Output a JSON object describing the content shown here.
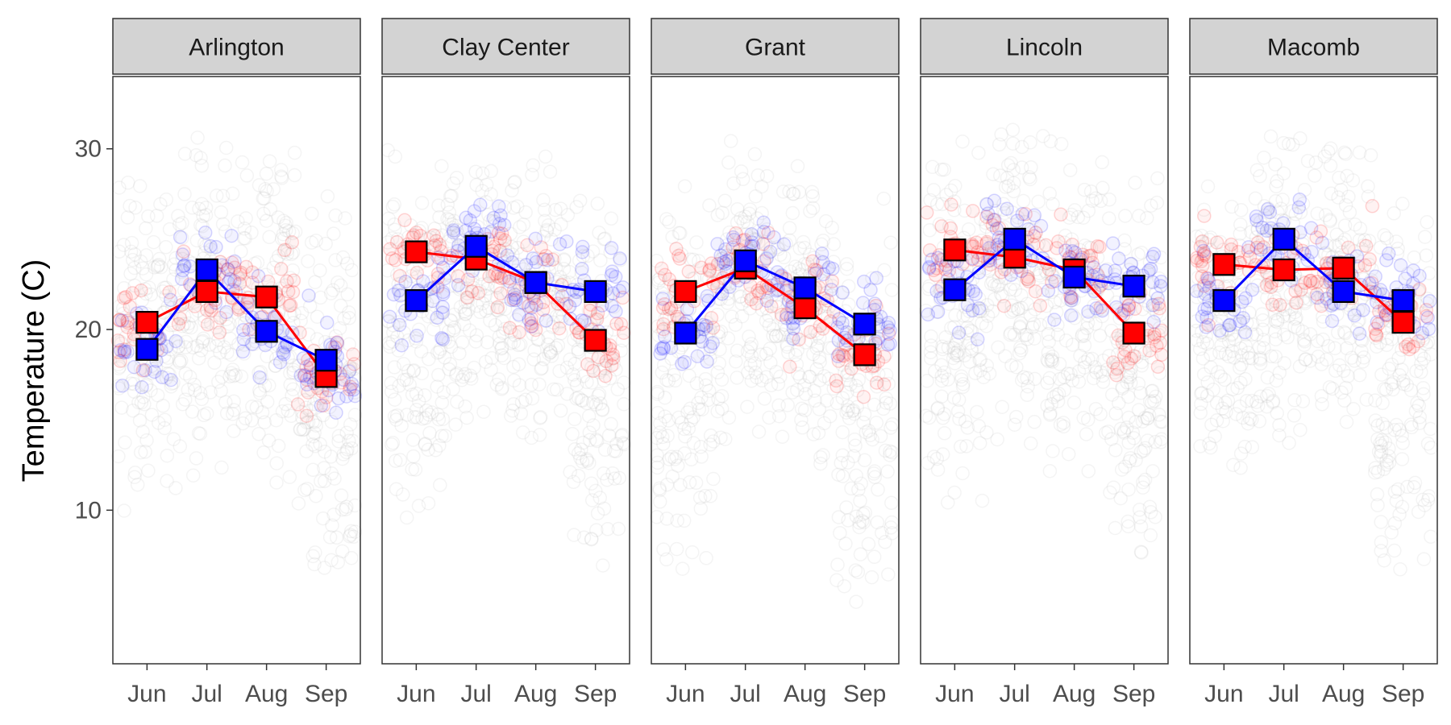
{
  "chart_data": {
    "type": "scatter",
    "subtype": "faceted jitter + mean line chart",
    "title": "",
    "xlabel": "",
    "ylabel": "Temperature (C)",
    "ylim": [
      1.5,
      34
    ],
    "y_ticks": [
      10,
      20,
      30
    ],
    "categories": [
      "Jun",
      "Jul",
      "Aug",
      "Sep"
    ],
    "grid": false,
    "legend": "none",
    "colors": {
      "red": "#ff0000",
      "blue": "#0000ff",
      "background_points": "#bdbdbd",
      "strip_fill": "#d3d3d3",
      "panel_border": "#333333"
    },
    "facets": [
      {
        "name": "Arlington",
        "series": [
          {
            "color": "red",
            "values": [
              20.4,
              22.1,
              21.8,
              17.4
            ]
          },
          {
            "color": "blue",
            "values": [
              18.9,
              23.3,
              19.9,
              18.3
            ]
          }
        ],
        "spread": [
          {
            "lo": 9.5,
            "hi": 28.5
          },
          {
            "lo": 11.0,
            "hi": 31.0
          },
          {
            "lo": 11.5,
            "hi": 30.0
          },
          {
            "lo": 5.5,
            "hi": 27.5
          }
        ]
      },
      {
        "name": "Clay Center",
        "series": [
          {
            "color": "red",
            "values": [
              24.3,
              23.9,
              22.6,
              19.4
            ]
          },
          {
            "color": "blue",
            "values": [
              21.6,
              24.6,
              22.6,
              22.1
            ]
          }
        ],
        "spread": [
          {
            "lo": 9.0,
            "hi": 30.0
          },
          {
            "lo": 14.5,
            "hi": 30.5
          },
          {
            "lo": 14.0,
            "hi": 30.0
          },
          {
            "lo": 5.5,
            "hi": 28.0
          }
        ]
      },
      {
        "name": "Grant",
        "series": [
          {
            "color": "red",
            "values": [
              22.1,
              23.4,
              21.2,
              18.6
            ]
          },
          {
            "color": "blue",
            "values": [
              19.8,
              23.8,
              22.3,
              20.3
            ]
          }
        ],
        "spread": [
          {
            "lo": 6.0,
            "hi": 28.5
          },
          {
            "lo": 13.5,
            "hi": 30.5
          },
          {
            "lo": 12.5,
            "hi": 29.5
          },
          {
            "lo": 3.0,
            "hi": 27.5
          }
        ]
      },
      {
        "name": "Lincoln",
        "series": [
          {
            "color": "red",
            "values": [
              24.4,
              24.0,
              23.3,
              19.8
            ]
          },
          {
            "color": "blue",
            "values": [
              22.2,
              25.0,
              22.9,
              22.4
            ]
          }
        ],
        "spread": [
          {
            "lo": 10.0,
            "hi": 30.5
          },
          {
            "lo": 13.5,
            "hi": 32.0
          },
          {
            "lo": 12.0,
            "hi": 30.5
          },
          {
            "lo": 7.0,
            "hi": 28.5
          }
        ]
      },
      {
        "name": "Macomb",
        "series": [
          {
            "color": "red",
            "values": [
              23.6,
              23.3,
              23.4,
              20.4
            ]
          },
          {
            "color": "blue",
            "values": [
              21.6,
              25.0,
              22.1,
              21.6
            ]
          }
        ],
        "spread": [
          {
            "lo": 11.5,
            "hi": 29.5
          },
          {
            "lo": 13.5,
            "hi": 31.0
          },
          {
            "lo": 13.5,
            "hi": 30.5
          },
          {
            "lo": 6.0,
            "hi": 27.5
          }
        ]
      }
    ]
  }
}
